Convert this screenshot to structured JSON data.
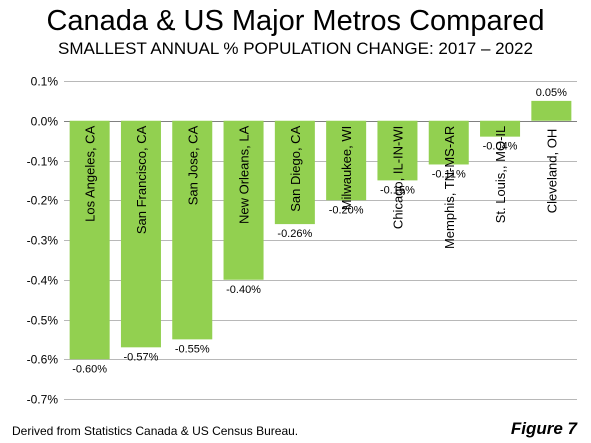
{
  "title": "Canada & US Major Metros Compared",
  "subtitle": "SMALLEST ANNUAL % POPULATION CHANGE: 2017 – 2022",
  "source": "Derived from Statistics Canada & US Census Bureau.",
  "figure_label": "Figure 7",
  "colors": {
    "bar": "#92D050",
    "grid": "#b8b8b8",
    "axis": "#808080"
  },
  "chart_data": {
    "type": "bar",
    "title": "Canada & US Major Metros Compared",
    "subtitle": "SMALLEST ANNUAL % POPULATION CHANGE: 2017 – 2022",
    "categories": [
      "Los Angeles, CA",
      "San Francisco, CA",
      "San Jose, CA",
      "New Orleans, LA",
      "San Diego, CA",
      "Milwaukee, WI",
      "Chicago, IL-IN-WI",
      "Memphis, TN-MS-AR",
      "St. Louis,, MO-IL",
      "Cleveland, OH"
    ],
    "values": [
      -0.6,
      -0.57,
      -0.55,
      -0.4,
      -0.26,
      -0.2,
      -0.15,
      -0.11,
      -0.04,
      0.05
    ],
    "data_labels": [
      "-0.60%",
      "-0.57%",
      "-0.55%",
      "-0.40%",
      "-0.26%",
      "-0.20%",
      "-0.15%",
      "-0.11%",
      "-0.04%",
      "0.05%"
    ],
    "ylim": [
      -0.7,
      0.1
    ],
    "yticks": [
      0.1,
      0.0,
      -0.1,
      -0.2,
      -0.3,
      -0.4,
      -0.5,
      -0.6,
      -0.7
    ],
    "ytick_labels": [
      "0.1%",
      "0.0%",
      "-0.1%",
      "-0.2%",
      "-0.3%",
      "-0.4%",
      "-0.5%",
      "-0.6%",
      "-0.7%"
    ],
    "xlabel": "",
    "ylabel": "",
    "grid": true,
    "legend": "none"
  }
}
